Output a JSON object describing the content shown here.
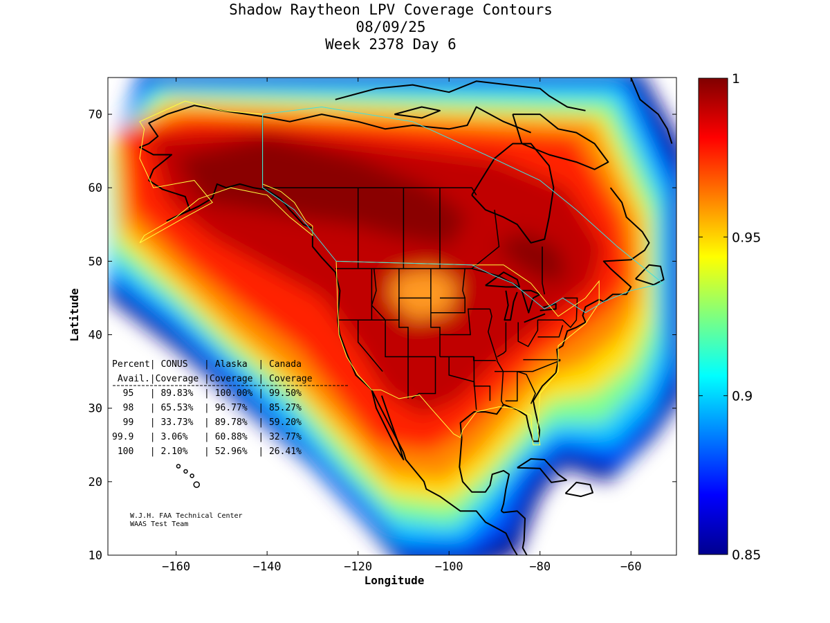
{
  "title": {
    "line1": "Shadow Raytheon LPV Coverage Contours",
    "line2": "08/09/25",
    "line3": "Week 2378 Day 6"
  },
  "chart_data": {
    "type": "heatmap",
    "xlabel": "Longitude",
    "ylabel": "Latitude",
    "xlim": [
      -175,
      -50
    ],
    "ylim": [
      10,
      75
    ],
    "xticks": [
      -160,
      -140,
      -120,
      -100,
      -80,
      -60
    ],
    "yticks": [
      10,
      20,
      30,
      40,
      50,
      60,
      70
    ],
    "colorbar": {
      "range": [
        0.85,
        1
      ],
      "ticks": [
        {
          "value": 1,
          "label": "1"
        },
        {
          "value": 0.95,
          "label": "0.95"
        },
        {
          "value": 0.9,
          "label": "0.9"
        },
        {
          "value": 0.85,
          "label": "0.85"
        }
      ],
      "colormap": "jet"
    },
    "coverage_table": {
      "header1": "Percent| CONUS   | Alaska  | Canada",
      "header2": " Avail.|Coverage |Coverage | Coverage",
      "rows": [
        "  95   | 89.83%  | 100.00% | 99.50%",
        "  98   | 65.53%  | 96.77%  | 85.27%",
        "  99   | 33.73%  | 89.78%  | 59.20%",
        "99.9   | 3.06%   | 60.88%  | 32.77%",
        " 100   | 2.10%   | 52.96%  | 26.41%"
      ]
    },
    "credit": [
      "W.J.H. FAA Technical Center",
      "WAAS Test Team"
    ]
  }
}
